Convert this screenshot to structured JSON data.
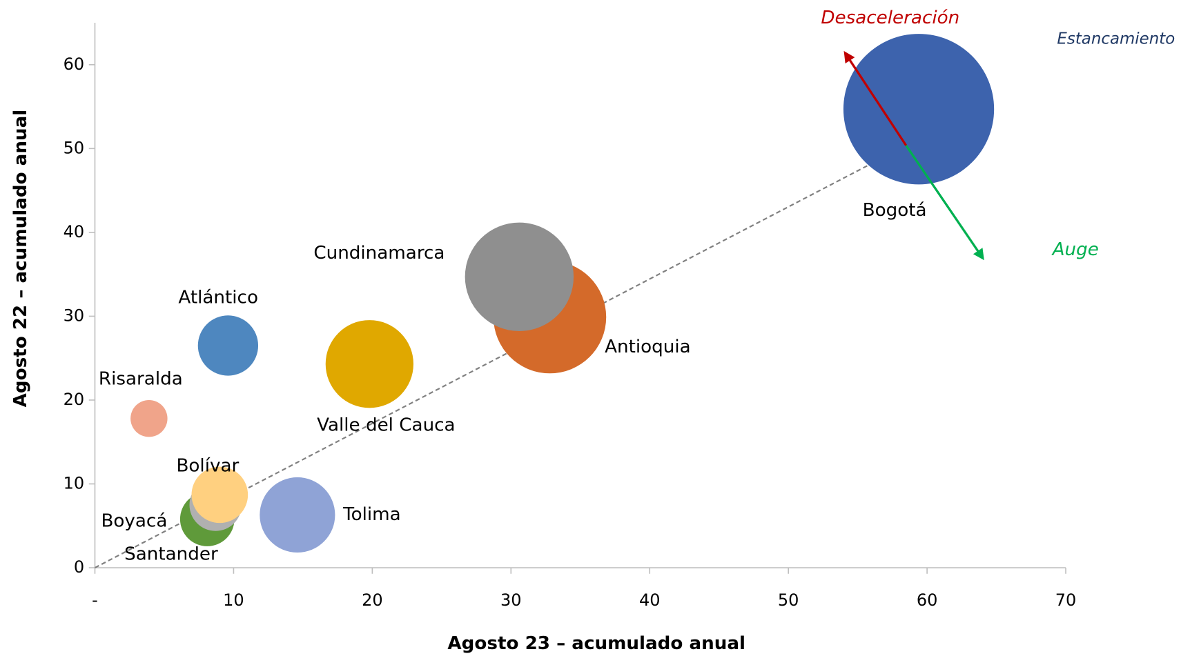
{
  "chart_data": {
    "type": "bubble",
    "x_label": "Agosto 23 – acumulado anual",
    "y_label": "Agosto 22 – acumulado anual",
    "xlim": [
      0,
      70
    ],
    "ylim": [
      0,
      65
    ],
    "xticks": [
      {
        "value": 0,
        "label": "-"
      },
      10,
      20,
      30,
      40,
      50,
      60,
      70
    ],
    "yticks": [
      0,
      10,
      20,
      30,
      40,
      50,
      60
    ],
    "reference_line": {
      "x": [
        0,
        64.7
      ],
      "y": [
        0,
        55.7
      ],
      "color": "#808080"
    },
    "annotations": [
      {
        "text": "Desaceleración",
        "color": "#c00000"
      },
      {
        "text": "Estancamiento",
        "color": "#1f3864"
      },
      {
        "text": "Auge",
        "color": "#00b050"
      }
    ],
    "series": [
      {
        "name": "Bogotá",
        "color": "#3d63ad",
        "x": 59.4,
        "y": 54.7,
        "size": 100
      },
      {
        "name": "Antioquia",
        "color": "#d46a2a",
        "x": 32.8,
        "y": 29.9,
        "size": 56
      },
      {
        "name": "Cundinamarca",
        "color": "#8f8f8f",
        "x": 30.6,
        "y": 34.7,
        "size": 52
      },
      {
        "name": "Valle del Cauca",
        "color": "#e0a800",
        "x": 19.8,
        "y": 24.3,
        "size": 34
      },
      {
        "name": "Atlántico",
        "color": "#4e87bf",
        "x": 9.6,
        "y": 26.5,
        "size": 16
      },
      {
        "name": "Risaralda",
        "color": "#f0a48a",
        "x": 3.9,
        "y": 17.8,
        "size": 6
      },
      {
        "name": "Tolima",
        "color": "#8fa3d6",
        "x": 14.6,
        "y": 6.3,
        "size": 25
      },
      {
        "name": "Boyacá",
        "color": "#5f9a3a",
        "x": 8.1,
        "y": 5.8,
        "size": 13
      },
      {
        "name": "Santander",
        "color": "#b0b0b0",
        "x": 8.7,
        "y": 7.5,
        "size": 12
      },
      {
        "name": "Bolívar",
        "color": "#ffd080",
        "x": 9.0,
        "y": 8.7,
        "size": 14
      }
    ]
  }
}
